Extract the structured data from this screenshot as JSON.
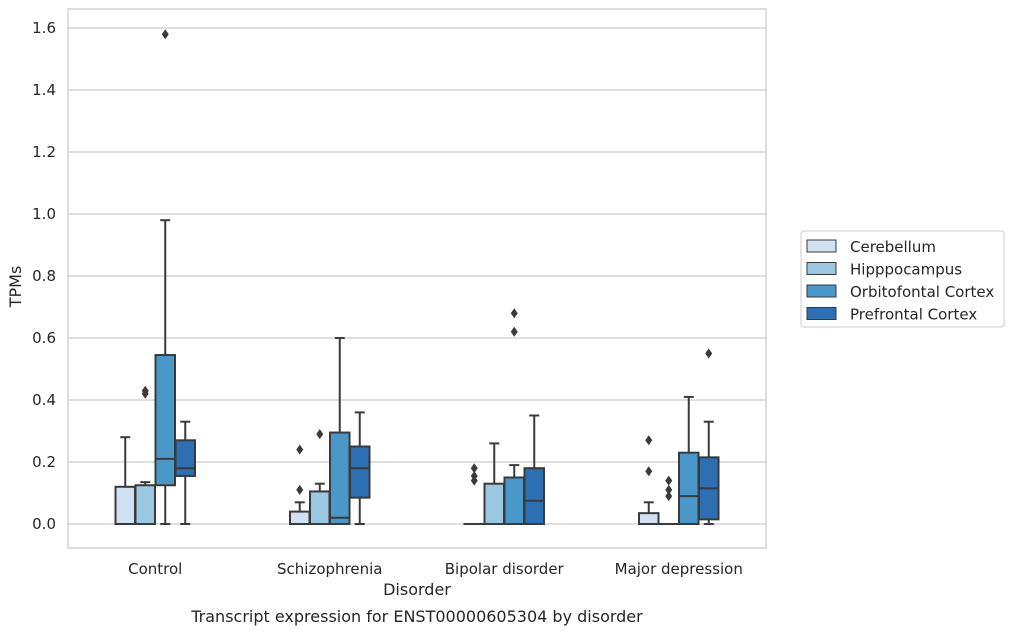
{
  "chart_data": {
    "type": "box",
    "title": "",
    "caption": "Transcript expression for ENST00000605304 by disorder",
    "xlabel": "Disorder",
    "ylabel": "TPMs",
    "ylim": [
      -0.075,
      1.66
    ],
    "yticks": [
      "0.0",
      "0.2",
      "0.4",
      "0.6",
      "0.8",
      "1.0",
      "1.2",
      "1.4",
      "1.6"
    ],
    "categories": [
      "Control",
      "Schizophrenia",
      "Bipolar disorder",
      "Major depression"
    ],
    "grid": true,
    "legend_position": "right",
    "series": [
      {
        "name": "Cerebellum",
        "color": "#d0e1f2",
        "boxes": [
          {
            "q1": 0.0,
            "median": 0.0,
            "q3": 0.12,
            "whisker_low": 0.0,
            "whisker_high": 0.28,
            "outliers": []
          },
          {
            "q1": 0.0,
            "median": 0.0,
            "q3": 0.04,
            "whisker_low": 0.0,
            "whisker_high": 0.07,
            "outliers": [
              0.11,
              0.24
            ]
          },
          {
            "q1": 0.0,
            "median": 0.0,
            "q3": 0.0,
            "whisker_low": 0.0,
            "whisker_high": 0.0,
            "outliers": [
              0.14,
              0.155,
              0.18
            ]
          },
          {
            "q1": 0.0,
            "median": 0.0,
            "q3": 0.035,
            "whisker_low": 0.0,
            "whisker_high": 0.07,
            "outliers": [
              0.17,
              0.27
            ]
          }
        ]
      },
      {
        "name": "Hipppocampus",
        "color": "#9ac8e0",
        "boxes": [
          {
            "q1": 0.0,
            "median": 0.0,
            "q3": 0.125,
            "whisker_low": 0.0,
            "whisker_high": 0.135,
            "outliers": [
              0.42,
              0.43
            ]
          },
          {
            "q1": 0.0,
            "median": 0.0,
            "q3": 0.105,
            "whisker_low": 0.0,
            "whisker_high": 0.13,
            "outliers": [
              0.29
            ]
          },
          {
            "q1": 0.0,
            "median": 0.0,
            "q3": 0.13,
            "whisker_low": 0.0,
            "whisker_high": 0.26,
            "outliers": []
          },
          {
            "q1": 0.0,
            "median": 0.0,
            "q3": 0.0,
            "whisker_low": 0.0,
            "whisker_high": 0.0,
            "outliers": [
              0.09,
              0.11,
              0.14
            ]
          }
        ]
      },
      {
        "name": "Orbitofontal Cortex",
        "color": "#4a98c9",
        "boxes": [
          {
            "q1": 0.125,
            "median": 0.21,
            "q3": 0.545,
            "whisker_low": 0.0,
            "whisker_high": 0.98,
            "outliers": [
              1.58
            ]
          },
          {
            "q1": 0.0,
            "median": 0.02,
            "q3": 0.295,
            "whisker_low": 0.0,
            "whisker_high": 0.6,
            "outliers": []
          },
          {
            "q1": 0.0,
            "median": 0.0,
            "q3": 0.15,
            "whisker_low": 0.0,
            "whisker_high": 0.19,
            "outliers": [
              0.62,
              0.68
            ]
          },
          {
            "q1": 0.0,
            "median": 0.09,
            "q3": 0.23,
            "whisker_low": 0.0,
            "whisker_high": 0.41,
            "outliers": []
          }
        ]
      },
      {
        "name": "Prefrontal Cortex",
        "color": "#2c6fb2",
        "boxes": [
          {
            "q1": 0.155,
            "median": 0.18,
            "q3": 0.27,
            "whisker_low": 0.0,
            "whisker_high": 0.33,
            "outliers": []
          },
          {
            "q1": 0.085,
            "median": 0.18,
            "q3": 0.25,
            "whisker_low": 0.0,
            "whisker_high": 0.36,
            "outliers": []
          },
          {
            "q1": 0.0,
            "median": 0.075,
            "q3": 0.18,
            "whisker_low": 0.0,
            "whisker_high": 0.35,
            "outliers": []
          },
          {
            "q1": 0.015,
            "median": 0.115,
            "q3": 0.215,
            "whisker_low": 0.0,
            "whisker_high": 0.33,
            "outliers": [
              0.55
            ]
          }
        ]
      }
    ]
  }
}
